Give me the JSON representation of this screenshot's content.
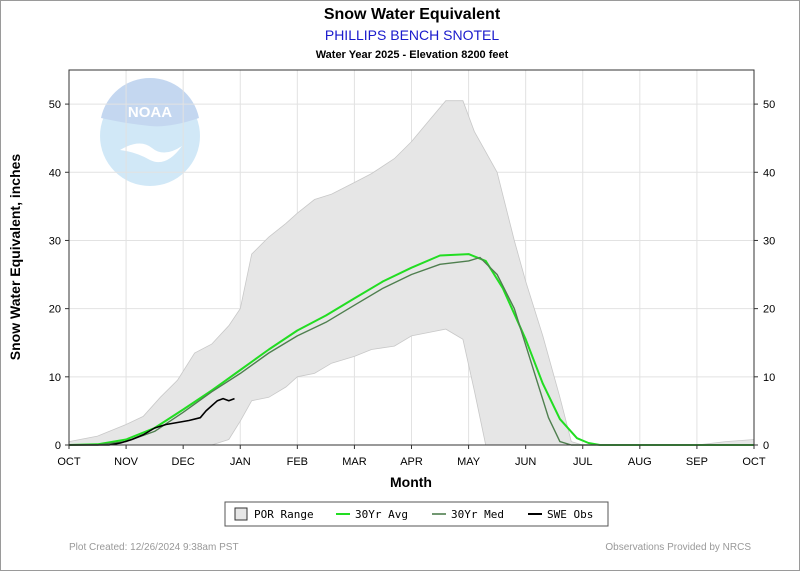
{
  "chart_data": {
    "type": "line",
    "title": "Snow Water Equivalent",
    "subtitle": "PHILLIPS BENCH SNOTEL",
    "subsubtitle": "Water Year 2025 -  Elevation 8200 feet",
    "xlabel": "Month",
    "ylabel": "Snow Water Equivalent, inches",
    "categories": [
      "OCT",
      "NOV",
      "DEC",
      "JAN",
      "FEB",
      "MAR",
      "APR",
      "MAY",
      "JUN",
      "JUL",
      "AUG",
      "SEP",
      "OCT"
    ],
    "ylim": [
      0,
      55
    ],
    "yticks": [
      0,
      10,
      20,
      30,
      40,
      50
    ],
    "grid": true,
    "legend_position": "bottom",
    "legend": [
      "POR Range",
      "30Yr Avg",
      "30Yr Med",
      "SWE Obs"
    ],
    "colors": {
      "por_fill": "#e6e6e6",
      "por_edge": "#c8c8c8",
      "avg": "#22dd22",
      "median": "#4f7f4f",
      "obs": "#000000",
      "grid": "#e2e2e2"
    },
    "series": [
      {
        "name": "POR Range",
        "x": [
          0,
          0.5,
          1,
          1.3,
          1.6,
          1.9,
          2.2,
          2.5,
          2.8,
          3.0,
          3.2,
          3.5,
          3.8,
          4.0,
          4.3,
          4.6,
          5.0,
          5.3,
          5.7,
          6.0,
          6.3,
          6.6,
          6.9,
          7.1,
          7.3,
          7.5,
          7.8,
          8.0,
          8.3,
          8.6,
          8.8,
          9.0,
          9.2,
          9.5,
          10,
          11,
          11.5,
          12
        ],
        "upper": [
          0.5,
          1.3,
          3.0,
          4.2,
          7.0,
          9.5,
          13.5,
          14.8,
          17.5,
          20.0,
          28.0,
          30.5,
          32.5,
          34.0,
          36.0,
          36.8,
          38.5,
          39.8,
          42.0,
          44.5,
          47.5,
          50.5,
          50.5,
          46.0,
          43.0,
          40.0,
          30.0,
          24.0,
          16.0,
          7.0,
          0.5,
          0.0,
          0.0,
          0.0,
          0.0,
          0.0,
          0.5,
          0.8
        ],
        "lower": [
          0.0,
          0.0,
          0.0,
          0.0,
          0.0,
          0.0,
          0.0,
          0.0,
          0.8,
          3.5,
          6.5,
          7.0,
          8.5,
          10.0,
          10.5,
          12.0,
          13.0,
          14.0,
          14.5,
          16.0,
          16.5,
          17.0,
          15.5,
          8.0,
          0.0,
          0.0,
          0.0,
          0.0,
          0.0,
          0.0,
          0.0,
          0.0,
          0.0,
          0.0,
          0.0,
          0.0,
          0.0,
          0.0
        ]
      },
      {
        "name": "30Yr Avg",
        "x": [
          0,
          0.5,
          1,
          1.5,
          2,
          2.5,
          3,
          3.5,
          4,
          4.5,
          5,
          5.5,
          6,
          6.5,
          7,
          7.3,
          7.6,
          8,
          8.3,
          8.6,
          8.9,
          9.1,
          9.3,
          10,
          11,
          12
        ],
        "values": [
          0,
          0.1,
          0.8,
          2.5,
          5.2,
          8.0,
          11.0,
          14.0,
          16.8,
          19.0,
          21.5,
          24.0,
          26.0,
          27.8,
          28.0,
          27.0,
          23.0,
          15.5,
          9.0,
          3.8,
          1.0,
          0.3,
          0,
          0,
          0,
          0
        ]
      },
      {
        "name": "30Yr Med",
        "x": [
          0,
          0.5,
          1,
          1.5,
          2,
          2.5,
          3,
          3.5,
          4,
          4.5,
          5,
          5.5,
          6,
          6.5,
          7,
          7.2,
          7.5,
          7.8,
          8.1,
          8.4,
          8.6,
          8.8,
          9,
          10,
          11,
          12
        ],
        "values": [
          0,
          0,
          0.5,
          2.0,
          4.8,
          7.8,
          10.5,
          13.5,
          16.0,
          18.0,
          20.5,
          23.0,
          25.0,
          26.5,
          27.0,
          27.5,
          25.0,
          20.0,
          12.0,
          4.0,
          0.5,
          0,
          0,
          0,
          0,
          0
        ]
      },
      {
        "name": "SWE Obs",
        "x": [
          0,
          0.7,
          0.9,
          1.1,
          1.3,
          1.5,
          1.7,
          1.9,
          2.1,
          2.3,
          2.4,
          2.6,
          2.7,
          2.8,
          2.9
        ],
        "values": [
          0,
          0,
          0.3,
          0.8,
          1.5,
          2.5,
          3.0,
          3.3,
          3.6,
          4.0,
          5.0,
          6.5,
          6.8,
          6.5,
          6.8
        ]
      }
    ]
  },
  "watermark": {
    "text": "NOAA"
  },
  "footer": {
    "left": "Plot Created:  12/26/2024 9:38am PST",
    "right": "Observations Provided by NRCS"
  }
}
